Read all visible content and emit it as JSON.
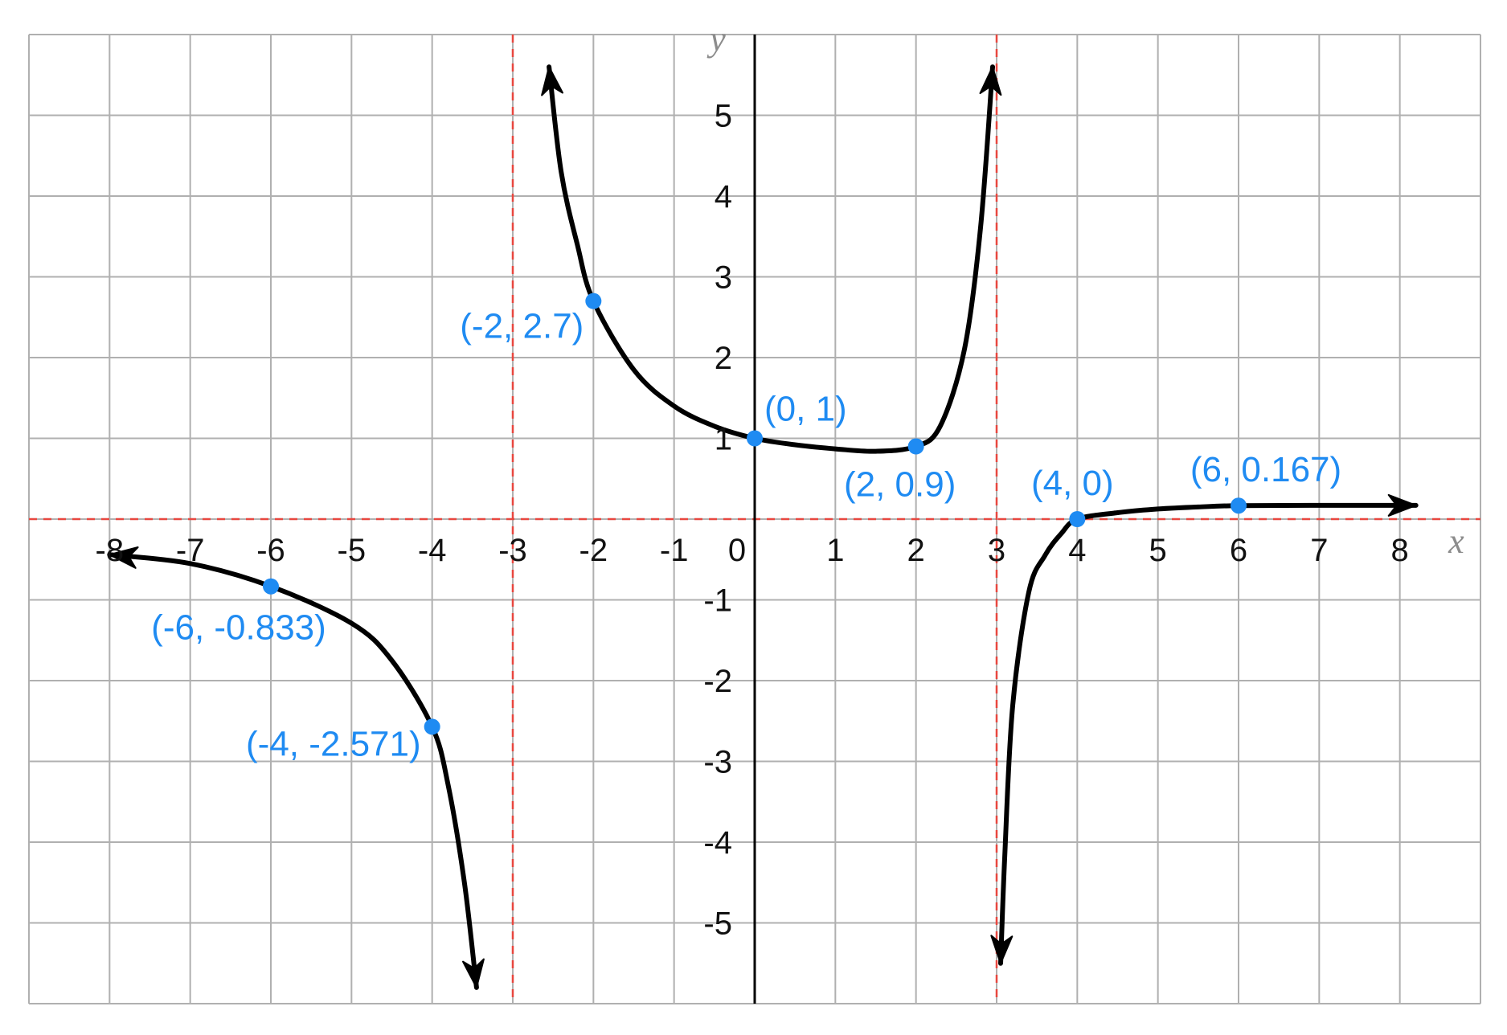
{
  "chart_data": {
    "type": "line",
    "title": "",
    "xlabel": "x",
    "ylabel": "y",
    "xlim": [
      -9,
      9
    ],
    "ylim": [
      -6,
      6
    ],
    "grid": true,
    "x_ticks": [
      "-8",
      "-7",
      "-6",
      "-5",
      "-4",
      "-3",
      "-2",
      "-1",
      "0",
      "1",
      "2",
      "3",
      "4",
      "5",
      "6",
      "7",
      "8"
    ],
    "x_tick_values": [
      -8,
      -7,
      -6,
      -5,
      -4,
      -3,
      -2,
      -1,
      0,
      1,
      2,
      3,
      4,
      5,
      6,
      7,
      8
    ],
    "y_ticks": [
      "5",
      "4",
      "3",
      "2",
      "1",
      "-1",
      "-2",
      "-3",
      "-4",
      "-5"
    ],
    "y_tick_values": [
      5,
      4,
      3,
      2,
      1,
      -1,
      -2,
      -3,
      -4,
      -5
    ],
    "asymptotes": {
      "vertical": [
        -3,
        3
      ],
      "horizontal": [
        0
      ]
    },
    "colors": {
      "curve": "#000000",
      "asymptote": "#e8473f",
      "points": "#1f8bf2",
      "grid": "#b0b0b0"
    },
    "series": [
      {
        "x": [
          -8,
          -7,
          -6,
          -5,
          -4.5,
          -4,
          -3.8,
          -3.6,
          -3.45
        ],
        "y": [
          -0.44,
          -0.55,
          -0.833,
          -1.29,
          -1.75,
          -2.571,
          -3.3,
          -4.5,
          -5.8
        ]
      },
      {
        "x": [
          -2.55,
          -2.4,
          -2.2,
          -2,
          -1.5,
          -1,
          -0.5,
          0,
          0.5,
          1,
          1.5,
          2,
          2.3,
          2.6,
          2.8,
          2.95
        ],
        "y": [
          5.6,
          4.3,
          3.4,
          2.7,
          1.85,
          1.4,
          1.15,
          1.0,
          0.92,
          0.87,
          0.84,
          0.9,
          1.15,
          2.1,
          3.6,
          5.6
        ]
      },
      {
        "x": [
          3.05,
          3.1,
          3.2,
          3.4,
          3.6,
          3.8,
          4,
          4.5,
          5,
          5.5,
          6,
          7,
          8.2
        ],
        "y": [
          -5.5,
          -4.2,
          -2.3,
          -0.9,
          -0.45,
          -0.18,
          0,
          0.08,
          0.125,
          0.15,
          0.167,
          0.17,
          0.17
        ]
      }
    ],
    "points": [
      {
        "x": -2,
        "y": 2.7,
        "label": "(-2, 2.7)"
      },
      {
        "x": 0,
        "y": 1,
        "label": "(0, 1)"
      },
      {
        "x": 2,
        "y": 0.9,
        "label": "(2, 0.9)"
      },
      {
        "x": 4,
        "y": 0,
        "label": "(4, 0)"
      },
      {
        "x": 6,
        "y": 0.167,
        "label": "(6, 0.167)"
      },
      {
        "x": -6,
        "y": -0.833,
        "label": "(-6, -0.833)"
      },
      {
        "x": -4,
        "y": -2.571,
        "label": "(-4, -2.571)"
      }
    ]
  }
}
